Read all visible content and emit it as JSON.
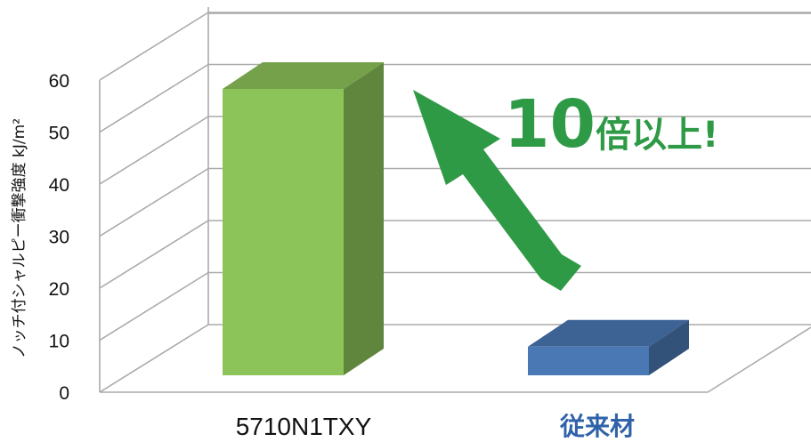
{
  "chart_data": {
    "type": "bar",
    "categories": [
      "5710N1TXY",
      "従来材"
    ],
    "values": [
      55,
      5.5
    ],
    "ylabel": "ノッチ付シャルピー衝撃強度 kJ/m²",
    "ylim": [
      0,
      60
    ],
    "yticks": [
      0,
      10,
      20,
      30,
      40,
      50,
      60
    ],
    "grid": true,
    "legend": "none",
    "colors": [
      "#8dc45a",
      "#4a78b4"
    ],
    "category_label_colors": [
      "#111111",
      "#2f62a8"
    ],
    "annotation": {
      "number": "10",
      "text": "倍以上!",
      "color": "#2f9a46"
    }
  }
}
